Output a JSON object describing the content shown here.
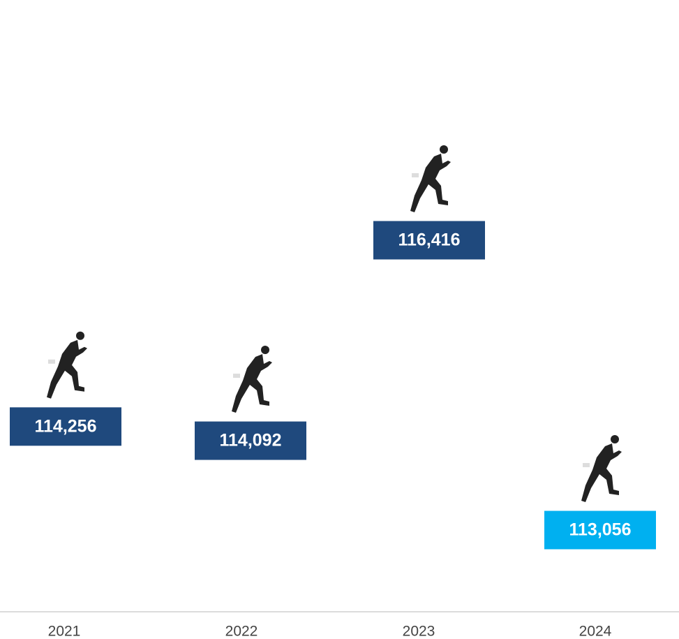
{
  "chart_data": {
    "type": "pictograph",
    "categories": [
      "2021",
      "2022",
      "2023",
      "2024"
    ],
    "values": [
      114256,
      114092,
      116416,
      113056
    ],
    "value_labels": [
      "114,256",
      "114,092",
      "116,416",
      "113,056"
    ],
    "colors": [
      "#1f497d",
      "#1f497d",
      "#1f497d",
      "#00b0f0"
    ]
  }
}
